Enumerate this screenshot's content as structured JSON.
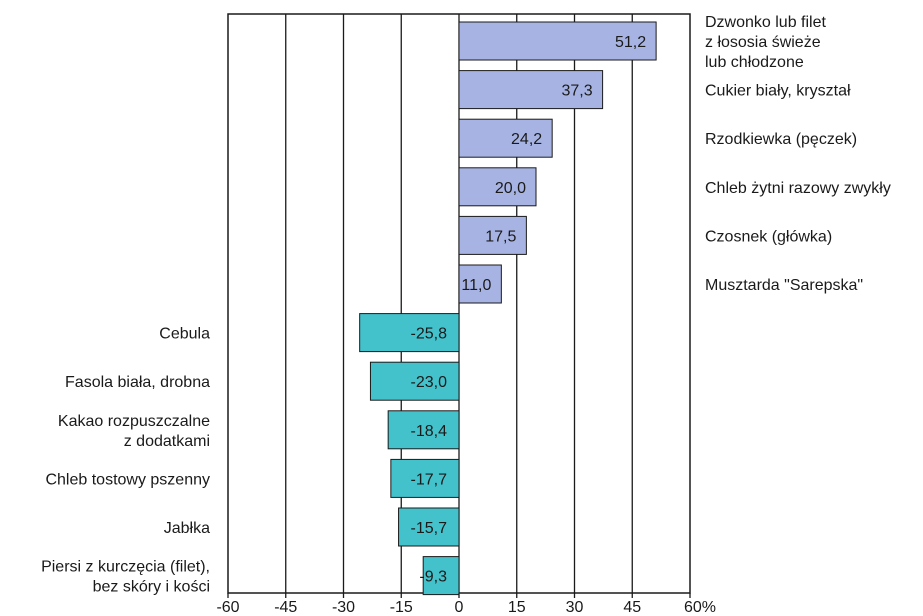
{
  "chart_data": {
    "type": "bar",
    "orientation": "horizontal",
    "categories": [
      "Dzwonko lub filet\nz łososia świeże\nlub chłodzone",
      "Cukier biały, kryształ",
      "Rzodkiewka (pęczek)",
      "Chleb żytni razowy zwykły",
      "Czosnek (główka)",
      "Musztarda \"Sarepska\"",
      "Cebula",
      "Fasola biała, drobna",
      "Kakao rozpuszczalne\nz dodatkami",
      "Chleb tostowy pszenny",
      "Jabłka",
      "Piersi z kurczęcia (filet),\nbez skóry i kości"
    ],
    "values": [
      51.2,
      37.3,
      24.2,
      20.0,
      17.5,
      11.0,
      -25.8,
      -23.0,
      -18.4,
      -17.7,
      -15.7,
      -9.3
    ],
    "value_labels": [
      "51,2",
      "37,3",
      "24,2",
      "20,0",
      "17,5",
      "11,0",
      "-25,8",
      "-23,0",
      "-18,4",
      "-17,7",
      "-15,7",
      "-9,3"
    ],
    "xlim": [
      -60,
      60
    ],
    "xticks": [
      "-60",
      "-45",
      "-30",
      "-15",
      "0",
      "15",
      "30",
      "45",
      "60%"
    ],
    "grid": "vertical",
    "positive_color": "#a7b4e3",
    "negative_color": "#44c2cc",
    "title": "",
    "xlabel": "",
    "ylabel": ""
  }
}
